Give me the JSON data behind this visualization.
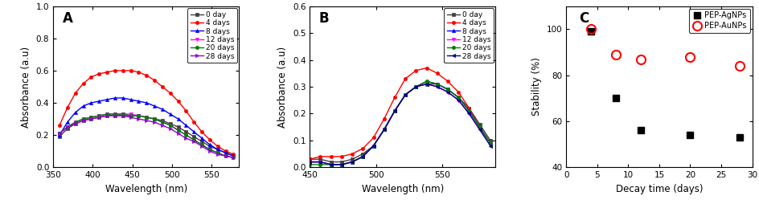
{
  "panel_A": {
    "title": "A",
    "xlabel": "Wavelength (nm)",
    "ylabel": "Absorbance (a.u)",
    "xlim": [
      350,
      585
    ],
    "ylim": [
      0.0,
      1.0
    ],
    "xticks": [
      350,
      400,
      450,
      500,
      550
    ],
    "yticks": [
      0.0,
      0.2,
      0.4,
      0.6,
      0.8,
      1.0
    ],
    "series": [
      {
        "label": "0 day",
        "color": "#404040",
        "marker": "s",
        "x": [
          358,
          368,
          378,
          388,
          398,
          408,
          418,
          428,
          438,
          448,
          458,
          468,
          478,
          488,
          498,
          508,
          518,
          528,
          538,
          548,
          558,
          568,
          578
        ],
        "y": [
          0.19,
          0.24,
          0.27,
          0.29,
          0.3,
          0.31,
          0.32,
          0.32,
          0.32,
          0.32,
          0.32,
          0.31,
          0.3,
          0.29,
          0.27,
          0.25,
          0.22,
          0.19,
          0.16,
          0.13,
          0.11,
          0.09,
          0.07
        ]
      },
      {
        "label": "4 days",
        "color": "#ff0000",
        "marker": "o",
        "x": [
          358,
          368,
          378,
          388,
          398,
          408,
          418,
          428,
          438,
          448,
          458,
          468,
          478,
          488,
          498,
          508,
          518,
          528,
          538,
          548,
          558,
          568,
          578
        ],
        "y": [
          0.26,
          0.37,
          0.46,
          0.52,
          0.56,
          0.58,
          0.59,
          0.6,
          0.6,
          0.6,
          0.59,
          0.57,
          0.54,
          0.5,
          0.46,
          0.41,
          0.35,
          0.28,
          0.22,
          0.17,
          0.13,
          0.1,
          0.08
        ]
      },
      {
        "label": "8 days",
        "color": "#0000ff",
        "marker": "^",
        "x": [
          358,
          368,
          378,
          388,
          398,
          408,
          418,
          428,
          438,
          448,
          458,
          468,
          478,
          488,
          498,
          508,
          518,
          528,
          538,
          548,
          558,
          568,
          578
        ],
        "y": [
          0.2,
          0.28,
          0.34,
          0.38,
          0.4,
          0.41,
          0.42,
          0.43,
          0.43,
          0.42,
          0.41,
          0.4,
          0.38,
          0.36,
          0.33,
          0.3,
          0.26,
          0.22,
          0.18,
          0.14,
          0.11,
          0.09,
          0.07
        ]
      },
      {
        "label": "12 days",
        "color": "#ff00ff",
        "marker": "v",
        "x": [
          358,
          368,
          378,
          388,
          398,
          408,
          418,
          428,
          438,
          448,
          458,
          468,
          478,
          488,
          498,
          508,
          518,
          528,
          538,
          548,
          558,
          568,
          578
        ],
        "y": [
          0.21,
          0.25,
          0.28,
          0.3,
          0.31,
          0.32,
          0.33,
          0.33,
          0.33,
          0.33,
          0.32,
          0.31,
          0.3,
          0.28,
          0.26,
          0.23,
          0.2,
          0.17,
          0.14,
          0.11,
          0.09,
          0.07,
          0.06
        ]
      },
      {
        "label": "20 days",
        "color": "#008000",
        "marker": "o",
        "x": [
          358,
          368,
          378,
          388,
          398,
          408,
          418,
          428,
          438,
          448,
          458,
          468,
          478,
          488,
          498,
          508,
          518,
          528,
          538,
          548,
          558,
          568,
          578
        ],
        "y": [
          0.21,
          0.25,
          0.28,
          0.3,
          0.31,
          0.32,
          0.33,
          0.33,
          0.33,
          0.32,
          0.32,
          0.31,
          0.3,
          0.28,
          0.26,
          0.23,
          0.2,
          0.17,
          0.14,
          0.11,
          0.09,
          0.07,
          0.06
        ]
      },
      {
        "label": "28 days",
        "color": "#9400d3",
        "marker": ">",
        "x": [
          358,
          368,
          378,
          388,
          398,
          408,
          418,
          428,
          438,
          448,
          458,
          468,
          478,
          488,
          498,
          508,
          518,
          528,
          538,
          548,
          558,
          568,
          578
        ],
        "y": [
          0.21,
          0.25,
          0.27,
          0.29,
          0.3,
          0.31,
          0.32,
          0.32,
          0.32,
          0.31,
          0.3,
          0.29,
          0.28,
          0.26,
          0.24,
          0.21,
          0.18,
          0.16,
          0.13,
          0.1,
          0.08,
          0.07,
          0.06
        ]
      }
    ]
  },
  "panel_B": {
    "title": "B",
    "xlabel": "Wavelength (nm)",
    "ylabel": "Absorbance (a.u)",
    "xlim": [
      450,
      590
    ],
    "ylim": [
      0.0,
      0.6
    ],
    "xticks": [
      450,
      500,
      550
    ],
    "yticks": [
      0.0,
      0.1,
      0.2,
      0.3,
      0.4,
      0.5,
      0.6
    ],
    "series": [
      {
        "label": "0 day",
        "color": "#404040",
        "marker": "s",
        "x": [
          450,
          458,
          466,
          474,
          482,
          490,
          498,
          506,
          514,
          522,
          530,
          538,
          546,
          554,
          562,
          570,
          578,
          586
        ],
        "y": [
          0.03,
          0.03,
          0.02,
          0.02,
          0.03,
          0.05,
          0.08,
          0.14,
          0.21,
          0.27,
          0.3,
          0.31,
          0.31,
          0.29,
          0.26,
          0.22,
          0.16,
          0.1
        ]
      },
      {
        "label": "4 days",
        "color": "#ff0000",
        "marker": "o",
        "x": [
          450,
          458,
          466,
          474,
          482,
          490,
          498,
          506,
          514,
          522,
          530,
          538,
          546,
          554,
          562,
          570,
          578,
          586
        ],
        "y": [
          0.03,
          0.04,
          0.04,
          0.04,
          0.05,
          0.07,
          0.11,
          0.18,
          0.26,
          0.33,
          0.36,
          0.37,
          0.35,
          0.32,
          0.28,
          0.22,
          0.15,
          0.09
        ]
      },
      {
        "label": "8 days",
        "color": "#0000ff",
        "marker": "^",
        "x": [
          450,
          458,
          466,
          474,
          482,
          490,
          498,
          506,
          514,
          522,
          530,
          538,
          546,
          554,
          562,
          570,
          578,
          586
        ],
        "y": [
          0.02,
          0.02,
          0.01,
          0.01,
          0.02,
          0.04,
          0.08,
          0.14,
          0.21,
          0.27,
          0.3,
          0.32,
          0.31,
          0.29,
          0.26,
          0.21,
          0.15,
          0.09
        ]
      },
      {
        "label": "12 days",
        "color": "#ff00ff",
        "marker": "v",
        "x": [
          450,
          458,
          466,
          474,
          482,
          490,
          498,
          506,
          514,
          522,
          530,
          538,
          546,
          554,
          562,
          570,
          578,
          586
        ],
        "y": [
          0.02,
          0.02,
          0.01,
          0.01,
          0.02,
          0.04,
          0.08,
          0.14,
          0.21,
          0.27,
          0.3,
          0.31,
          0.3,
          0.28,
          0.25,
          0.2,
          0.14,
          0.09
        ]
      },
      {
        "label": "20 days",
        "color": "#008000",
        "marker": "o",
        "x": [
          450,
          458,
          466,
          474,
          482,
          490,
          498,
          506,
          514,
          522,
          530,
          538,
          546,
          554,
          562,
          570,
          578,
          586
        ],
        "y": [
          0.01,
          0.01,
          0.01,
          0.01,
          0.02,
          0.04,
          0.08,
          0.14,
          0.21,
          0.27,
          0.3,
          0.32,
          0.31,
          0.29,
          0.26,
          0.21,
          0.15,
          0.09
        ]
      },
      {
        "label": "28 days",
        "color": "#00008b",
        "marker": "<",
        "x": [
          450,
          458,
          466,
          474,
          482,
          490,
          498,
          506,
          514,
          522,
          530,
          538,
          546,
          554,
          562,
          570,
          578,
          586
        ],
        "y": [
          0.02,
          0.02,
          0.01,
          0.01,
          0.02,
          0.04,
          0.08,
          0.14,
          0.21,
          0.27,
          0.3,
          0.31,
          0.3,
          0.28,
          0.25,
          0.2,
          0.14,
          0.08
        ]
      }
    ]
  },
  "panel_C": {
    "title": "C",
    "xlabel": "Decay time (days)",
    "ylabel": "Stability (%)",
    "xlim": [
      0,
      30
    ],
    "ylim": [
      40,
      110
    ],
    "xticks": [
      0,
      5,
      10,
      15,
      20,
      25,
      30
    ],
    "yticks": [
      40,
      60,
      80,
      100
    ],
    "series": [
      {
        "label": "PEP-AgNPs",
        "color": "#000000",
        "marker": "s",
        "markersize": 6,
        "fillstyle": "full",
        "x": [
          4,
          8,
          12,
          20,
          28
        ],
        "y": [
          99,
          70,
          56,
          54,
          53
        ]
      },
      {
        "label": "PEP-AuNPs",
        "color": "#ff0000",
        "marker": "o",
        "markersize": 8,
        "fillstyle": "none",
        "x": [
          4,
          8,
          12,
          20,
          28
        ],
        "y": [
          100,
          89,
          87,
          88,
          84
        ]
      }
    ]
  }
}
